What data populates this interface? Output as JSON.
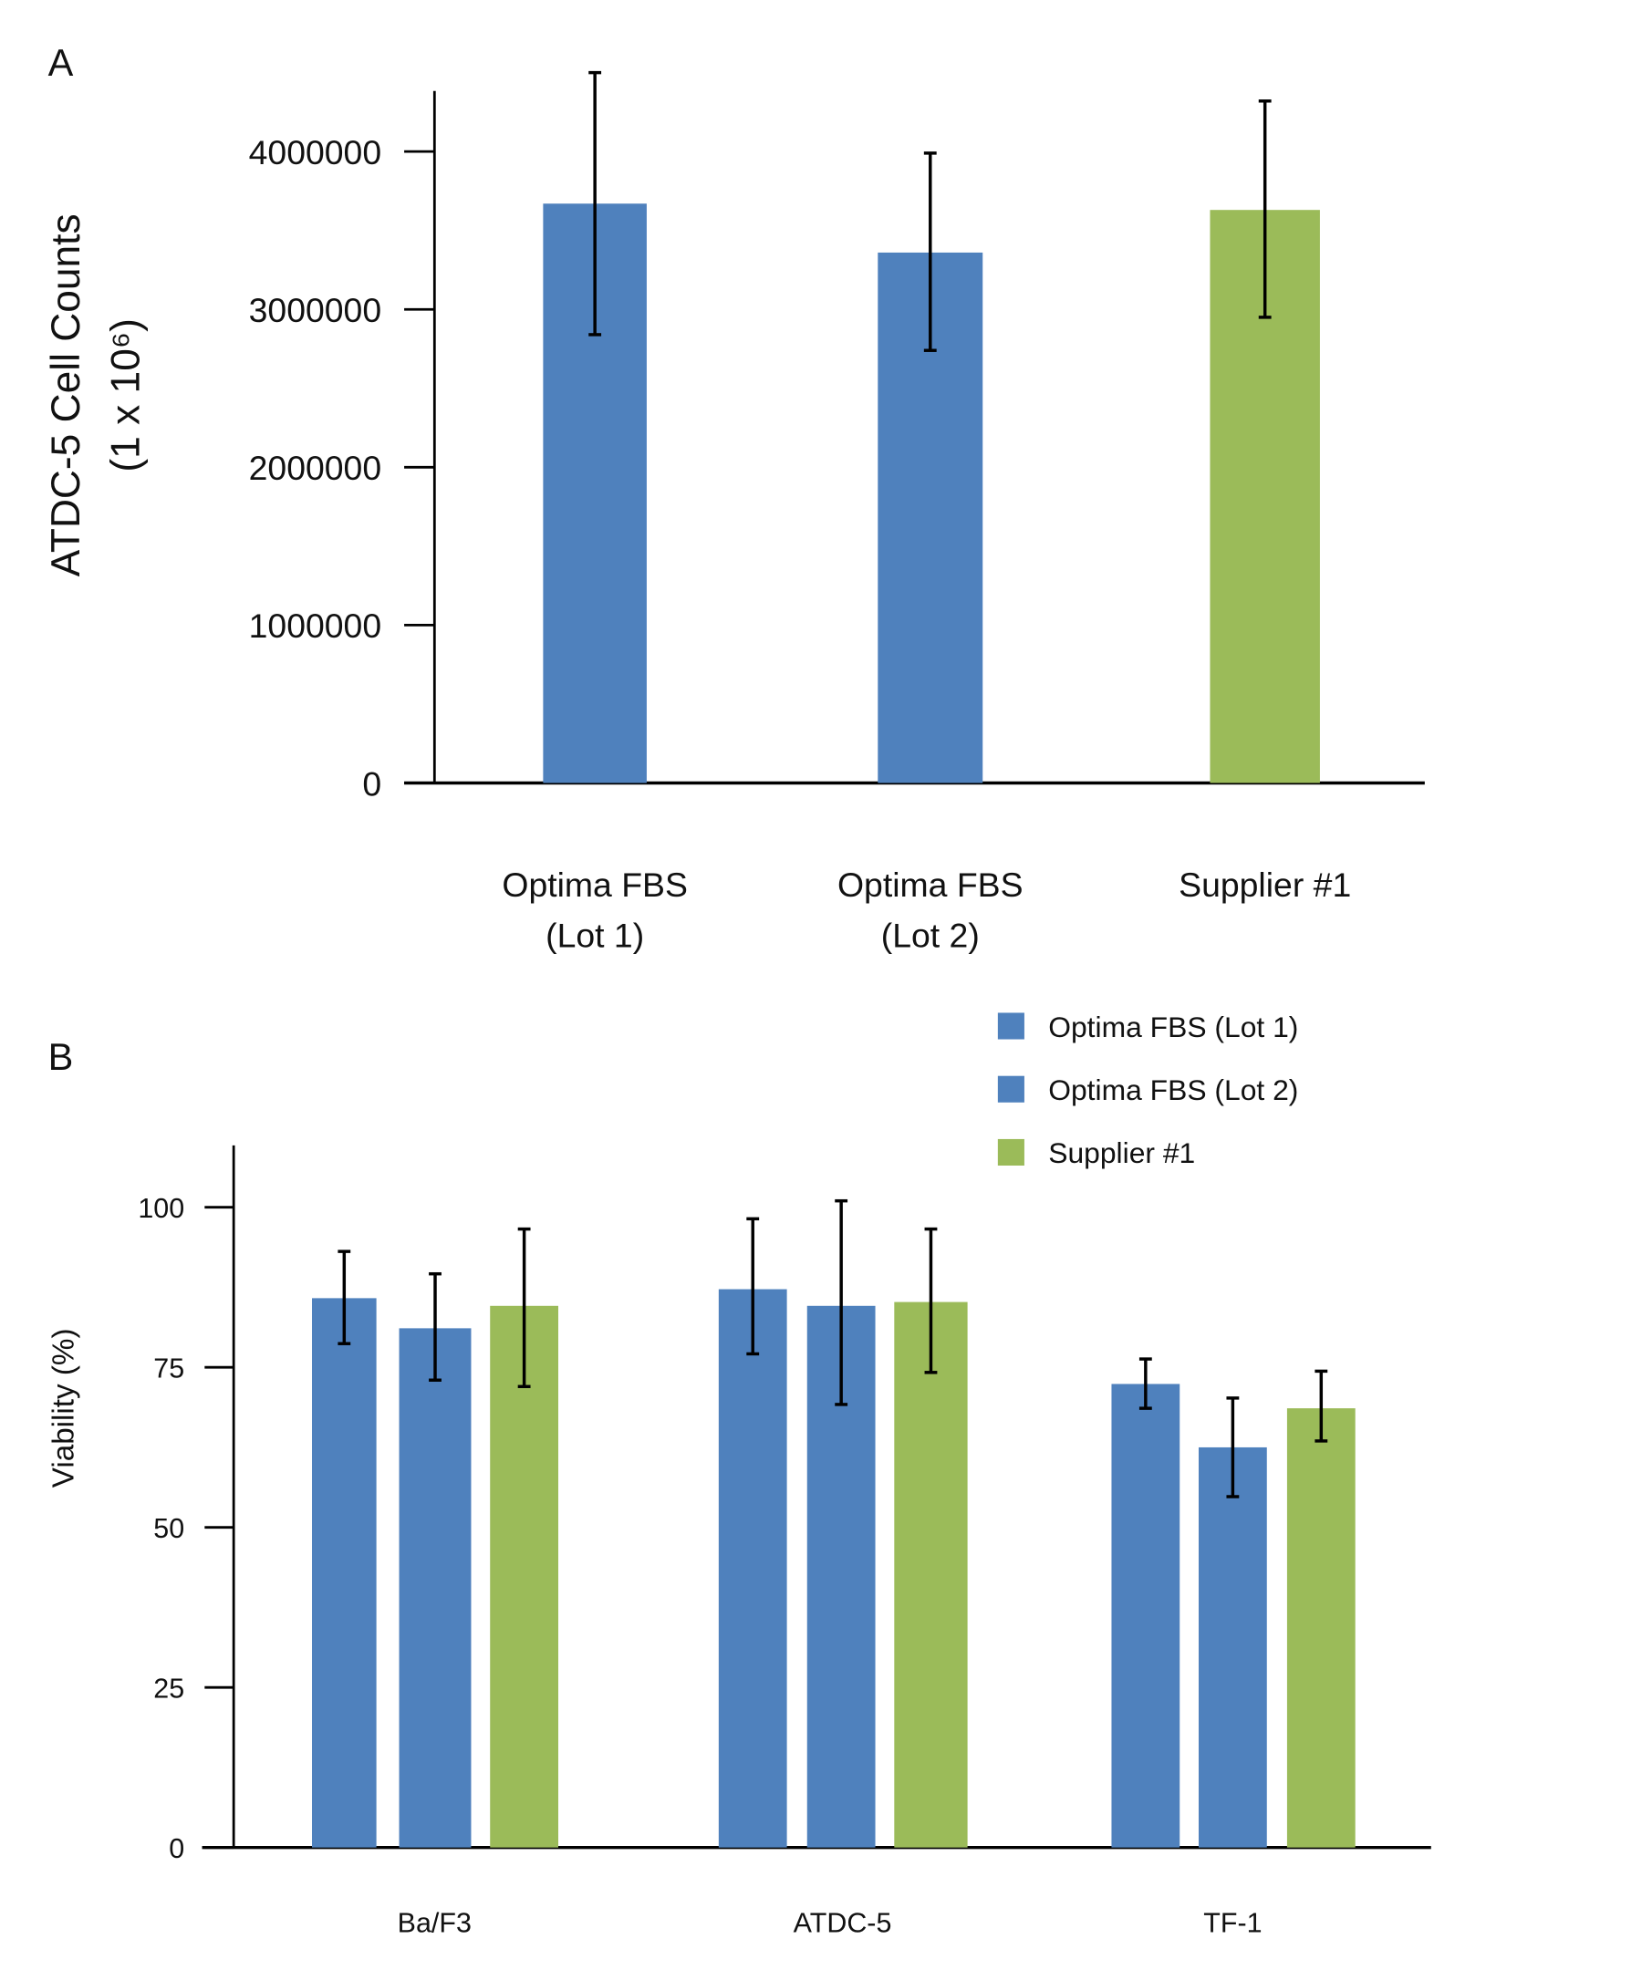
{
  "chart_data": [
    {
      "panel": "A",
      "type": "bar",
      "ylabel": "ATDC-5 Cell Counts",
      "ylabel_unit": "(1 x 10⁶)",
      "categories": [
        [
          "Optima FBS",
          "(Lot 1)"
        ],
        [
          "Optima FBS",
          "(Lot 2)"
        ],
        [
          "Supplier #1"
        ]
      ],
      "values": [
        3670000,
        3360000,
        3630000
      ],
      "error_upper": [
        4500000,
        3990000,
        4320000
      ],
      "error_lower": [
        2840000,
        2740000,
        2950000
      ],
      "bar_colors": [
        "#4f81bd",
        "#4f81bd",
        "#9bbb59"
      ],
      "ylim": [
        0,
        4400000
      ],
      "yticks": [
        0,
        1000000,
        2000000,
        3000000,
        4000000
      ],
      "ytick_labels": [
        "0",
        "1000000",
        "2000000",
        "3000000",
        "4000000"
      ],
      "grid": false
    },
    {
      "panel": "B",
      "type": "bar",
      "ylabel": "Viability (%)",
      "categories": [
        "Ba/F3",
        "ATDC-5",
        "TF-1"
      ],
      "series": [
        {
          "name": "Optima FBS (Lot 1)",
          "color": "#4f81bd",
          "values": [
            85.8,
            87.2,
            72.4
          ],
          "error_upper": [
            93.1,
            98.2,
            76.3
          ],
          "error_lower": [
            78.7,
            77.1,
            68.6
          ]
        },
        {
          "name": "Optima FBS (Lot 2)",
          "color": "#4f81bd",
          "values": [
            81.1,
            84.6,
            62.5
          ],
          "error_upper": [
            89.6,
            101.0,
            70.2
          ],
          "error_lower": [
            73.0,
            69.2,
            54.8
          ]
        },
        {
          "name": "Supplier #1",
          "color": "#9bbb59",
          "values": [
            84.6,
            85.2,
            68.6
          ],
          "error_upper": [
            96.6,
            96.6,
            74.4
          ],
          "error_lower": [
            72.0,
            74.2,
            63.5
          ]
        }
      ],
      "ylim": [
        0,
        110
      ],
      "yticks": [
        0,
        25,
        50,
        75,
        100
      ],
      "ytick_labels": [
        "0",
        "25",
        "50",
        "75",
        "100"
      ],
      "legend": "top-right",
      "grid": false
    }
  ]
}
